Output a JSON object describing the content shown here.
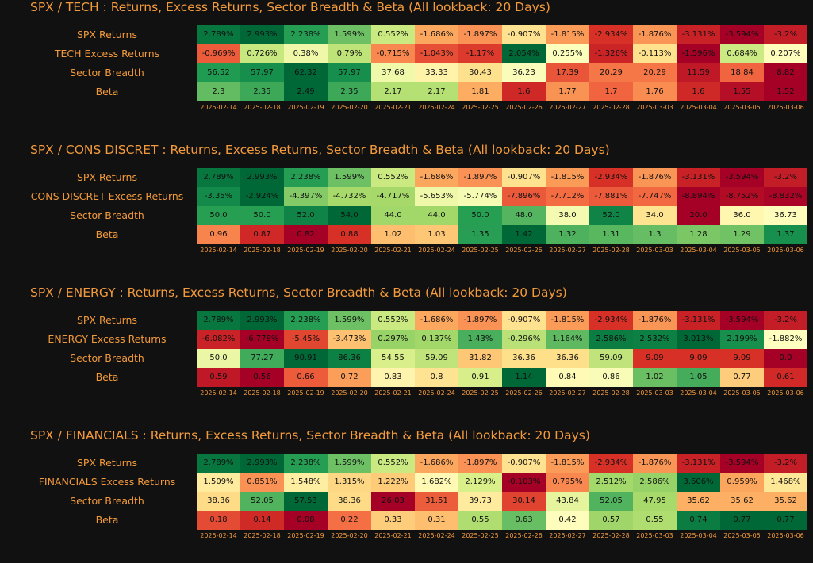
{
  "chart_data": [
    {
      "type": "heatmap",
      "title": "SPX / TECH : Returns, Excess Returns, Sector Breadth & Beta (All lookback: 20 Days)",
      "columns": [
        "2025-02-14",
        "2025-02-18",
        "2025-02-19",
        "2025-02-20",
        "2025-02-21",
        "2025-02-24",
        "2025-02-25",
        "2025-02-26",
        "2025-02-27",
        "2025-02-28",
        "2025-03-03",
        "2025-03-04",
        "2025-03-05",
        "2025-03-06"
      ],
      "rows": [
        {
          "label": "SPX Returns",
          "values": [
            2.789,
            2.993,
            2.238,
            1.599,
            0.552,
            -1.686,
            -1.897,
            -0.907,
            -1.815,
            -2.934,
            -1.876,
            -3.131,
            -3.594,
            -3.2
          ],
          "display": [
            "2.789%",
            "2.993%",
            "2.238%",
            "1.599%",
            "0.552%",
            "-1.686%",
            "-1.897%",
            "-0.907%",
            "-1.815%",
            "-2.934%",
            "-1.876%",
            "-3.131%",
            "-3.594%",
            "-3.2%"
          ]
        },
        {
          "label": "TECH Excess Returns",
          "values": [
            -0.969,
            0.726,
            0.38,
            0.79,
            -0.715,
            -1.043,
            -1.17,
            2.054,
            0.255,
            -1.326,
            -0.113,
            -1.596,
            0.684,
            0.207
          ],
          "display": [
            "-0.969%",
            "0.726%",
            "0.38%",
            "0.79%",
            "-0.715%",
            "-1.043%",
            "-1.17%",
            "2.054%",
            "0.255%",
            "-1.326%",
            "-0.113%",
            "-1.596%",
            "0.684%",
            "0.207%"
          ]
        },
        {
          "label": "Sector Breadth",
          "values": [
            56.52,
            57.97,
            62.32,
            57.97,
            37.68,
            33.33,
            30.43,
            36.23,
            17.39,
            20.29,
            20.29,
            11.59,
            18.84,
            8.82
          ],
          "display": [
            "56.52",
            "57.97",
            "62.32",
            "57.97",
            "37.68",
            "33.33",
            "30.43",
            "36.23",
            "17.39",
            "20.29",
            "20.29",
            "11.59",
            "18.84",
            "8.82"
          ]
        },
        {
          "label": "Beta",
          "values": [
            2.3,
            2.35,
            2.49,
            2.35,
            2.17,
            2.17,
            1.81,
            1.6,
            1.77,
            1.7,
            1.76,
            1.6,
            1.55,
            1.52
          ],
          "display": [
            "2.3",
            "2.35",
            "2.49",
            "2.35",
            "2.17",
            "2.17",
            "1.81",
            "1.6",
            "1.77",
            "1.7",
            "1.76",
            "1.6",
            "1.55",
            "1.52"
          ]
        }
      ]
    },
    {
      "type": "heatmap",
      "title": "SPX / CONS DISCRET : Returns, Excess Returns, Sector Breadth & Beta (All lookback: 20 Days)",
      "columns": [
        "2025-02-14",
        "2025-02-18",
        "2025-02-19",
        "2025-02-20",
        "2025-02-21",
        "2025-02-24",
        "2025-02-25",
        "2025-02-26",
        "2025-02-27",
        "2025-02-28",
        "2025-03-03",
        "2025-03-04",
        "2025-03-05",
        "2025-03-06"
      ],
      "rows": [
        {
          "label": "SPX Returns",
          "values": [
            2.789,
            2.993,
            2.238,
            1.599,
            0.552,
            -1.686,
            -1.897,
            -0.907,
            -1.815,
            -2.934,
            -1.876,
            -3.131,
            -3.594,
            -3.2
          ],
          "display": [
            "2.789%",
            "2.993%",
            "2.238%",
            "1.599%",
            "0.552%",
            "-1.686%",
            "-1.897%",
            "-0.907%",
            "-1.815%",
            "-2.934%",
            "-1.876%",
            "-3.131%",
            "-3.594%",
            "-3.2%"
          ]
        },
        {
          "label": "CONS DISCRET Excess Returns",
          "values": [
            -3.35,
            -2.924,
            -4.397,
            -4.732,
            -4.717,
            -5.653,
            -5.774,
            -7.896,
            -7.712,
            -7.881,
            -7.747,
            -8.894,
            -8.752,
            -8.832
          ],
          "display": [
            "-3.35%",
            "-2.924%",
            "-4.397%",
            "-4.732%",
            "-4.717%",
            "-5.653%",
            "-5.774%",
            "-7.896%",
            "-7.712%",
            "-7.881%",
            "-7.747%",
            "-8.894%",
            "-8.752%",
            "-8.832%"
          ]
        },
        {
          "label": "Sector Breadth",
          "values": [
            50.0,
            50.0,
            52.0,
            54.0,
            44.0,
            44.0,
            50.0,
            48.0,
            38.0,
            52.0,
            34.0,
            20.0,
            36.0,
            36.73
          ],
          "display": [
            "50.0",
            "50.0",
            "52.0",
            "54.0",
            "44.0",
            "44.0",
            "50.0",
            "48.0",
            "38.0",
            "52.0",
            "34.0",
            "20.0",
            "36.0",
            "36.73"
          ]
        },
        {
          "label": "Beta",
          "values": [
            0.96,
            0.87,
            0.82,
            0.88,
            1.02,
            1.03,
            1.35,
            1.42,
            1.32,
            1.31,
            1.3,
            1.28,
            1.29,
            1.37
          ],
          "display": [
            "0.96",
            "0.87",
            "0.82",
            "0.88",
            "1.02",
            "1.03",
            "1.35",
            "1.42",
            "1.32",
            "1.31",
            "1.3",
            "1.28",
            "1.29",
            "1.37"
          ]
        }
      ]
    },
    {
      "type": "heatmap",
      "title": "SPX / ENERGY : Returns, Excess Returns, Sector Breadth & Beta (All lookback: 20 Days)",
      "columns": [
        "2025-02-14",
        "2025-02-18",
        "2025-02-19",
        "2025-02-20",
        "2025-02-21",
        "2025-02-24",
        "2025-02-25",
        "2025-02-26",
        "2025-02-27",
        "2025-02-28",
        "2025-03-03",
        "2025-03-04",
        "2025-03-05",
        "2025-03-06"
      ],
      "rows": [
        {
          "label": "SPX Returns",
          "values": [
            2.789,
            2.993,
            2.238,
            1.599,
            0.552,
            -1.686,
            -1.897,
            -0.907,
            -1.815,
            -2.934,
            -1.876,
            -3.131,
            -3.594,
            -3.2
          ],
          "display": [
            "2.789%",
            "2.993%",
            "2.238%",
            "1.599%",
            "0.552%",
            "-1.686%",
            "-1.897%",
            "-0.907%",
            "-1.815%",
            "-2.934%",
            "-1.876%",
            "-3.131%",
            "-3.594%",
            "-3.2%"
          ]
        },
        {
          "label": "ENERGY Excess Returns",
          "values": [
            -6.082,
            -6.778,
            -5.45,
            -3.473,
            0.297,
            0.137,
            1.43,
            -0.296,
            1.164,
            2.586,
            2.532,
            3.013,
            2.199,
            -1.882
          ],
          "display": [
            "-6.082%",
            "-6.778%",
            "-5.45%",
            "-3.473%",
            "0.297%",
            "0.137%",
            "1.43%",
            "-0.296%",
            "1.164%",
            "2.586%",
            "2.532%",
            "3.013%",
            "2.199%",
            "-1.882%"
          ]
        },
        {
          "label": "Sector Breadth",
          "values": [
            50.0,
            77.27,
            90.91,
            86.36,
            54.55,
            59.09,
            31.82,
            36.36,
            36.36,
            59.09,
            9.09,
            9.09,
            9.09,
            0.0
          ],
          "display": [
            "50.0",
            "77.27",
            "90.91",
            "86.36",
            "54.55",
            "59.09",
            "31.82",
            "36.36",
            "36.36",
            "59.09",
            "9.09",
            "9.09",
            "9.09",
            "0.0"
          ]
        },
        {
          "label": "Beta",
          "values": [
            0.59,
            0.56,
            0.66,
            0.72,
            0.83,
            0.8,
            0.91,
            1.14,
            0.84,
            0.86,
            1.02,
            1.05,
            0.77,
            0.61
          ],
          "display": [
            "0.59",
            "0.56",
            "0.66",
            "0.72",
            "0.83",
            "0.8",
            "0.91",
            "1.14",
            "0.84",
            "0.86",
            "1.02",
            "1.05",
            "0.77",
            "0.61"
          ]
        }
      ]
    },
    {
      "type": "heatmap",
      "title": "SPX / FINANCIALS : Returns, Excess Returns, Sector Breadth & Beta (All lookback: 20 Days)",
      "columns": [
        "2025-02-14",
        "2025-02-18",
        "2025-02-19",
        "2025-02-20",
        "2025-02-21",
        "2025-02-24",
        "2025-02-25",
        "2025-02-26",
        "2025-02-27",
        "2025-02-28",
        "2025-03-03",
        "2025-03-04",
        "2025-03-05",
        "2025-03-06"
      ],
      "rows": [
        {
          "label": "SPX Returns",
          "values": [
            2.789,
            2.993,
            2.238,
            1.599,
            0.552,
            -1.686,
            -1.897,
            -0.907,
            -1.815,
            -2.934,
            -1.876,
            -3.131,
            -3.594,
            -3.2
          ],
          "display": [
            "2.789%",
            "2.993%",
            "2.238%",
            "1.599%",
            "0.552%",
            "-1.686%",
            "-1.897%",
            "-0.907%",
            "-1.815%",
            "-2.934%",
            "-1.876%",
            "-3.131%",
            "-3.594%",
            "-3.2%"
          ]
        },
        {
          "label": "FINANCIALS Excess Returns",
          "values": [
            1.509,
            0.851,
            1.548,
            1.315,
            1.222,
            1.682,
            2.129,
            -0.103,
            0.795,
            2.512,
            2.586,
            3.606,
            0.959,
            1.468
          ],
          "display": [
            "1.509%",
            "0.851%",
            "1.548%",
            "1.315%",
            "1.222%",
            "1.682%",
            "2.129%",
            "-0.103%",
            "0.795%",
            "2.512%",
            "2.586%",
            "3.606%",
            "0.959%",
            "1.468%"
          ]
        },
        {
          "label": "Sector Breadth",
          "values": [
            38.36,
            52.05,
            57.53,
            38.36,
            26.03,
            31.51,
            39.73,
            30.14,
            43.84,
            52.05,
            47.95,
            35.62,
            35.62,
            35.62
          ],
          "display": [
            "38.36",
            "52.05",
            "57.53",
            "38.36",
            "26.03",
            "31.51",
            "39.73",
            "30.14",
            "43.84",
            "52.05",
            "47.95",
            "35.62",
            "35.62",
            "35.62"
          ]
        },
        {
          "label": "Beta",
          "values": [
            0.18,
            0.14,
            0.08,
            0.22,
            0.33,
            0.31,
            0.55,
            0.63,
            0.42,
            0.57,
            0.55,
            0.74,
            0.77,
            0.77
          ],
          "display": [
            "0.18",
            "0.14",
            "0.08",
            "0.22",
            "0.33",
            "0.31",
            "0.55",
            "0.63",
            "0.42",
            "0.57",
            "0.55",
            "0.74",
            "0.77",
            "0.77"
          ]
        }
      ]
    }
  ]
}
